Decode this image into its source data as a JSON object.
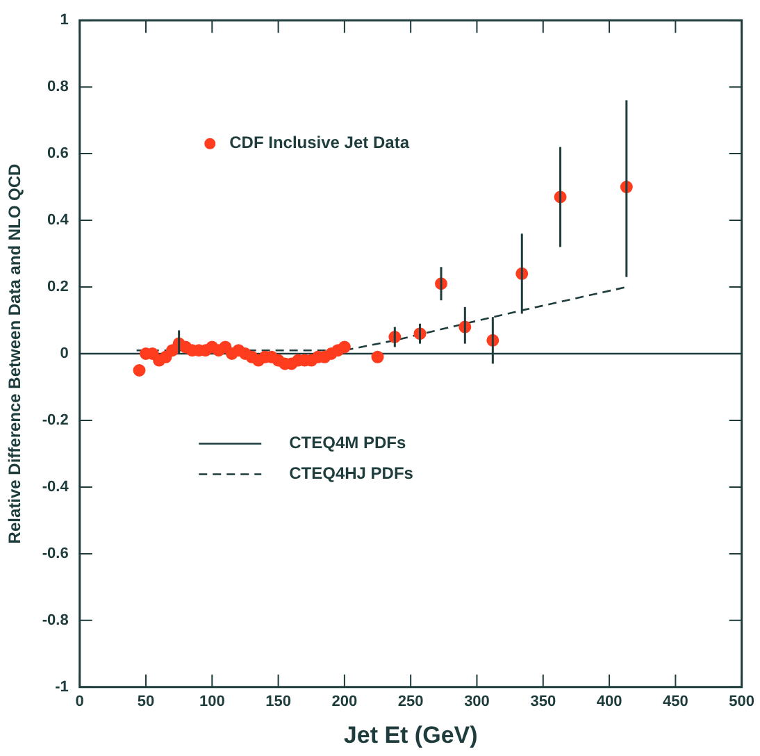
{
  "chart_data": {
    "type": "scatter",
    "xlabel": "Jet Et (GeV)",
    "ylabel": "Relative Difference Between Data and NLO QCD",
    "xlim": [
      0,
      500
    ],
    "xticks": [
      0,
      50,
      100,
      150,
      200,
      250,
      300,
      350,
      400,
      450,
      500
    ],
    "ylim": [
      -1,
      1
    ],
    "yticks": [
      -1,
      -0.8,
      -0.6,
      -0.4,
      -0.2,
      0,
      0.2,
      0.4,
      0.6,
      0.8,
      1
    ],
    "grid": false,
    "legend": "left",
    "series": [
      {
        "name": "CDF Inclusive Jet Data",
        "type": "scatter",
        "marker": "circle",
        "color": "#ff3c1e",
        "x": [
          45,
          50,
          55,
          60,
          65,
          70,
          75,
          80,
          85,
          90,
          95,
          100,
          105,
          110,
          115,
          120,
          125,
          130,
          135,
          140,
          145,
          150,
          155,
          160,
          165,
          170,
          175,
          180,
          185,
          190,
          195,
          200,
          225,
          238,
          257,
          273,
          291,
          312,
          334,
          363,
          413
        ],
        "values": [
          -0.05,
          0,
          0,
          -0.02,
          -0.01,
          0.01,
          0.03,
          0.02,
          0.01,
          0.01,
          0.01,
          0.02,
          0.01,
          0.02,
          0,
          0.01,
          0,
          -0.01,
          -0.02,
          -0.01,
          -0.01,
          -0.02,
          -0.03,
          -0.03,
          -0.02,
          -0.02,
          -0.02,
          -0.01,
          -0.01,
          0,
          0.01,
          0.02,
          -0.01,
          0.05,
          0.06,
          0.21,
          0.08,
          0.04,
          0.24,
          0.47,
          0.5
        ],
        "errors": [
          null,
          null,
          null,
          null,
          null,
          null,
          [
            0,
            0.07
          ],
          null,
          null,
          null,
          null,
          null,
          null,
          null,
          null,
          null,
          null,
          null,
          null,
          null,
          null,
          null,
          null,
          null,
          null,
          null,
          null,
          null,
          null,
          null,
          null,
          null,
          null,
          [
            0.02,
            0.08
          ],
          [
            0.03,
            0.09
          ],
          [
            0.16,
            0.26
          ],
          [
            0.03,
            0.14
          ],
          [
            -0.03,
            0.11
          ],
          [
            0.12,
            0.36
          ],
          [
            0.32,
            0.62
          ],
          [
            0.23,
            0.76
          ]
        ]
      },
      {
        "name": "CTEQ4M PDFs",
        "type": "line",
        "marker": "none",
        "line_style": "solid",
        "color": "#1e3c3c",
        "x": [
          0,
          500
        ],
        "values": [
          0,
          0
        ]
      },
      {
        "name": "CTEQ4HJ PDFs",
        "type": "line",
        "marker": "none",
        "line_style": "dashed",
        "color": "#1e3c3c",
        "x": [
          43,
          200,
          238,
          291,
          334,
          413
        ],
        "values": [
          0.01,
          0.01,
          0.04,
          0.09,
          0.13,
          0.2
        ]
      }
    ]
  }
}
